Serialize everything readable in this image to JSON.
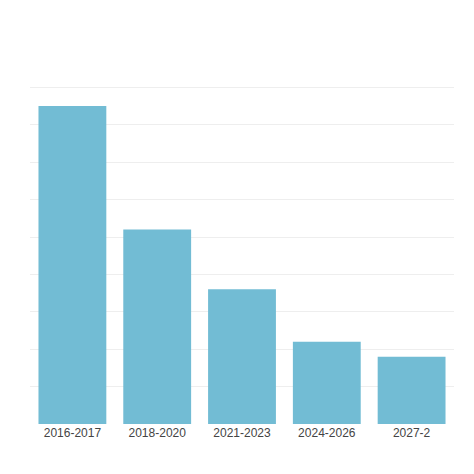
{
  "chart_data": {
    "type": "bar",
    "categories": [
      "2016-2017",
      "2018-2020",
      "2021-2023",
      "2024-2026",
      "2027-2"
    ],
    "values": [
      85,
      52,
      36,
      22,
      18
    ],
    "color": "#72BCD4",
    "ylim": [
      0,
      100
    ],
    "yticks": [
      0,
      10,
      20,
      30,
      40,
      50,
      60,
      70,
      80,
      90,
      100
    ],
    "grid": true,
    "tick_labels": "x"
  }
}
